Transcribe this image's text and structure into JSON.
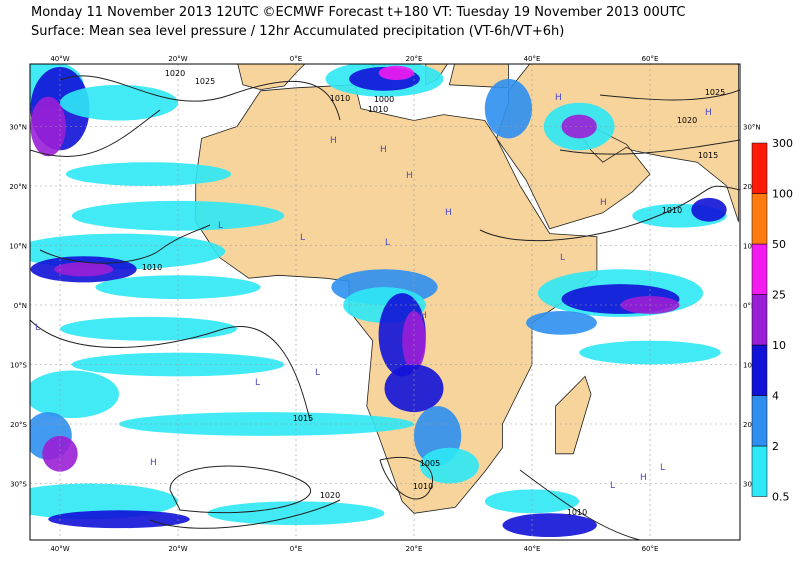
{
  "header": {
    "line1": "Monday 11 November 2013 12UTC ©ECMWF Forecast t+180 VT: Tuesday 19 November 2013 00UTC",
    "line2": "Surface: Mean sea level pressure / 12hr Accumulated precipitation (VT-6h/VT+6h)"
  },
  "map": {
    "longitude_labels": [
      "40°W",
      "20°W",
      "0°E",
      "20°E",
      "40°E",
      "60°E"
    ],
    "latitude_labels": [
      "30°N",
      "20°N",
      "10°N",
      "0°N",
      "10°S",
      "20°S",
      "30°S"
    ],
    "isobar_labels": [
      "1025",
      "1020",
      "1010",
      "1010",
      "1000",
      "1010",
      "1015",
      "1020",
      "1005",
      "1010",
      "1010",
      "1015",
      "1020",
      "1025",
      "1010"
    ],
    "high_label": "H",
    "low_label": "L"
  },
  "legend": {
    "levels": [
      0.5,
      2,
      4,
      10,
      25,
      50,
      100,
      300
    ],
    "colors": [
      "#2ee8f5",
      "#2f8fef",
      "#1212d8",
      "#9a1fd6",
      "#f21cf0",
      "#ff7a10",
      "#ff1a0a"
    ]
  }
}
